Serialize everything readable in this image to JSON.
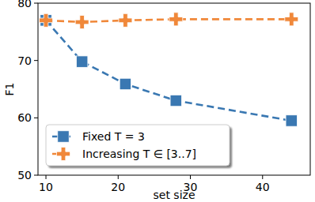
{
  "chart_data": {
    "type": "line",
    "x_label": "set size",
    "y_label": "F1",
    "x": [
      10,
      15,
      21,
      28,
      44
    ],
    "series": [
      {
        "name": "Fixed T = 3",
        "color": "#3a78b2",
        "marker": "square",
        "line_style": "dashed",
        "values": [
          77.0,
          69.8,
          65.9,
          63.0,
          59.5
        ]
      },
      {
        "name": "Increasing T ∈ [3..7]",
        "color": "#f0883a",
        "marker": "plus",
        "line_style": "dashed",
        "values": [
          77.0,
          76.7,
          77.0,
          77.2,
          77.2
        ]
      }
    ],
    "xlim": [
      8.9,
      46.6
    ],
    "xticks": [
      10,
      20,
      30,
      40
    ],
    "ylim": [
      50,
      80
    ],
    "yticks": [
      50,
      60,
      70,
      80
    ],
    "grid": false,
    "legend": "lower left"
  }
}
